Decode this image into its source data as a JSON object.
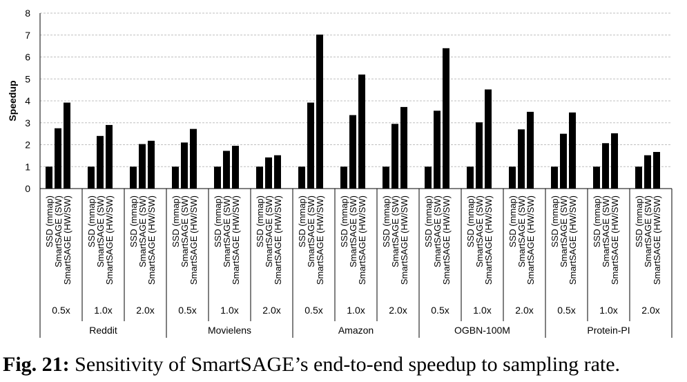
{
  "chart_data": {
    "type": "bar",
    "ylabel": "Speedup",
    "ylim": [
      0,
      8
    ],
    "yticks": [
      "0",
      "1",
      "2",
      "3",
      "4",
      "5",
      "6",
      "7",
      "8"
    ],
    "grid": true,
    "bar_color": "#000000",
    "grid_color": "#bfbfbf",
    "series_labels": [
      "SSD (mmap)",
      "SmartSAGE (SW)",
      "SmartSAGE (HW/SW)"
    ],
    "datasets": [
      {
        "name": "Reddit",
        "groups": [
          {
            "rate": "0.5x",
            "values": [
              1,
              2.75,
              3.92
            ]
          },
          {
            "rate": "1.0x",
            "values": [
              1,
              2.4,
              2.9
            ]
          },
          {
            "rate": "2.0x",
            "values": [
              1,
              2.03,
              2.18
            ]
          }
        ]
      },
      {
        "name": "Movielens",
        "groups": [
          {
            "rate": "0.5x",
            "values": [
              1,
              2.1,
              2.72
            ]
          },
          {
            "rate": "1.0x",
            "values": [
              1,
              1.72,
              1.95
            ]
          },
          {
            "rate": "2.0x",
            "values": [
              1,
              1.42,
              1.52
            ]
          }
        ]
      },
      {
        "name": "Amazon",
        "groups": [
          {
            "rate": "0.5x",
            "values": [
              1,
              3.92,
              7.02
            ]
          },
          {
            "rate": "1.0x",
            "values": [
              1,
              3.35,
              5.2
            ]
          },
          {
            "rate": "2.0x",
            "values": [
              1,
              2.95,
              3.72
            ]
          }
        ]
      },
      {
        "name": "OGBN-100M",
        "groups": [
          {
            "rate": "0.5x",
            "values": [
              1,
              3.55,
              6.4
            ]
          },
          {
            "rate": "1.0x",
            "values": [
              1,
              3.02,
              4.52
            ]
          },
          {
            "rate": "2.0x",
            "values": [
              1,
              2.7,
              3.5
            ]
          }
        ]
      },
      {
        "name": "Protein-PI",
        "groups": [
          {
            "rate": "0.5x",
            "values": [
              1,
              2.5,
              3.47
            ]
          },
          {
            "rate": "1.0x",
            "values": [
              1,
              2.07,
              2.52
            ]
          },
          {
            "rate": "2.0x",
            "values": [
              1,
              1.52,
              1.67
            ]
          }
        ]
      }
    ]
  },
  "caption": {
    "label": "Fig. 21:",
    "text": " Sensitivity of SmartSAGE’s end-to-end speedup to sampling rate."
  }
}
